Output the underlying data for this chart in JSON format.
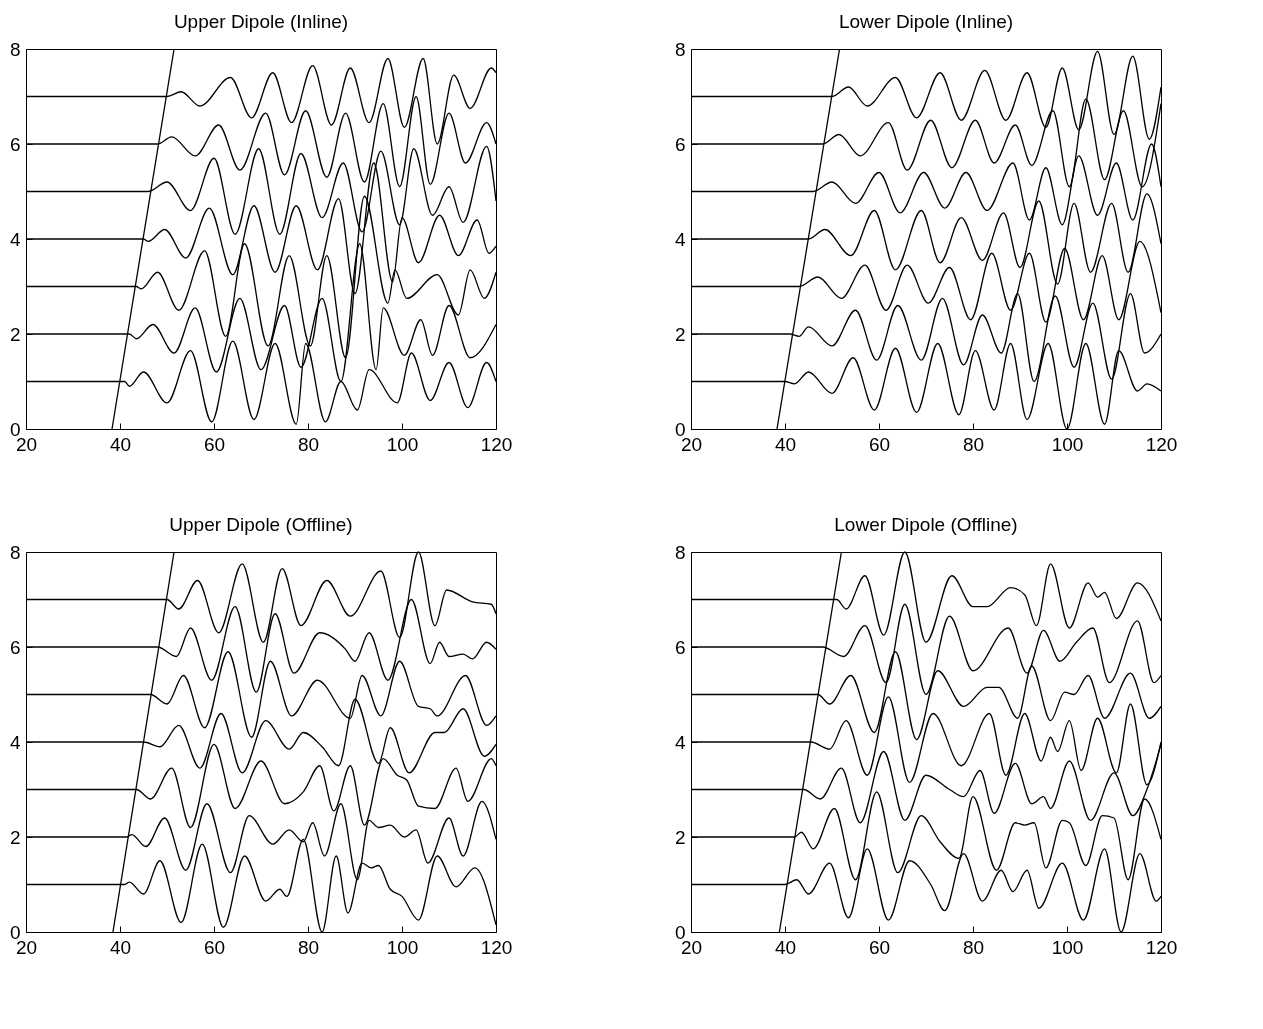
{
  "chart_data": [
    {
      "type": "line",
      "title": "Upper Dipole (Inline)",
      "xlim": [
        20,
        120
      ],
      "xticks": [
        20,
        40,
        60,
        80,
        100,
        120
      ],
      "ylim": [
        0,
        8
      ],
      "yticks": [
        0,
        2,
        4,
        6,
        8
      ],
      "grid": false,
      "series": [
        {
          "color": "#000000",
          "x": [
            20,
            41,
            42,
            45,
            50,
            55,
            59.5,
            64,
            68.5,
            73,
            77.5,
            79.5,
            83.7,
            87,
            90.5,
            93,
            99,
            102,
            106,
            110,
            114,
            118,
            120
          ],
          "values": [
            1,
            1,
            0.9,
            1.2,
            0.55,
            1.65,
            0.15,
            1.85,
            0.2,
            1.8,
            0.1,
            1.8,
            0.15,
            1,
            0.4,
            1.25,
            0.55,
            1.6,
            0.6,
            1.4,
            0.45,
            1.4,
            1
          ]
        },
        {
          "color": "#000000",
          "x": [
            20,
            42,
            43.5,
            47,
            51.5,
            56,
            60.5,
            65.5,
            70,
            75,
            78.5,
            83,
            87,
            91,
            94.5,
            96,
            100.5,
            104,
            106.5,
            110,
            114.5,
            120
          ],
          "values": [
            2,
            2,
            1.9,
            2.2,
            1.6,
            2.55,
            1.2,
            2.75,
            1.25,
            2.6,
            1.3,
            2.75,
            1,
            3.9,
            1.25,
            2.55,
            1.55,
            2.3,
            1.55,
            2.6,
            1.5,
            2.2
          ]
        },
        {
          "color": "#000000",
          "x": [
            20,
            43.5,
            44.5,
            48,
            52.5,
            58,
            62.5,
            66.5,
            71.5,
            76,
            80.5,
            84,
            88,
            92,
            97,
            98.5,
            101,
            107.5,
            112,
            114.5,
            117.5,
            120
          ],
          "values": [
            3,
            3,
            2.95,
            3.3,
            2.5,
            3.75,
            1.95,
            3.9,
            1.75,
            3.65,
            1.75,
            3.65,
            1.5,
            4.9,
            2.65,
            3.35,
            2.75,
            3.25,
            2.4,
            3.35,
            2.75,
            3.3
          ]
        },
        {
          "color": "#000000",
          "x": [
            20,
            45,
            46,
            49.5,
            54,
            59,
            64,
            68.5,
            73,
            77.5,
            82,
            86.5,
            90,
            94,
            98,
            100,
            103.5,
            108,
            112,
            116,
            118.5,
            120
          ],
          "values": [
            4,
            4,
            3.95,
            4.2,
            3.6,
            4.65,
            3.25,
            4.7,
            3.3,
            4.7,
            3.35,
            4.85,
            2.85,
            5.6,
            3.1,
            4.45,
            3.5,
            4.5,
            3.65,
            4.4,
            3.7,
            3.85
          ]
        },
        {
          "color": "#000000",
          "x": [
            20,
            46,
            50,
            55,
            60,
            64.5,
            69.5,
            74,
            78.5,
            83,
            87.5,
            91.5,
            95.5,
            99.5,
            102.5,
            106.5,
            110,
            113,
            118,
            120
          ],
          "values": [
            5,
            5,
            5.2,
            4.6,
            5.7,
            4.1,
            5.9,
            4.1,
            5.8,
            4.45,
            5.6,
            4.15,
            5.85,
            4.3,
            5.9,
            4.5,
            5.1,
            4.35,
            5.95,
            4.8
          ]
        },
        {
          "color": "#000000",
          "x": [
            20,
            48,
            51,
            56,
            61,
            65.5,
            71,
            75,
            79.5,
            84,
            88,
            92,
            96,
            99.5,
            103,
            106,
            110,
            113.5,
            118,
            120
          ],
          "values": [
            6,
            6,
            6.15,
            5.75,
            6.4,
            5.45,
            6.65,
            5.35,
            6.7,
            5.3,
            6.65,
            5.2,
            6.85,
            5.1,
            7,
            5.15,
            6.65,
            5.6,
            6.45,
            6
          ]
        },
        {
          "color": "#000000",
          "x": [
            20,
            50,
            53,
            57,
            63.5,
            68,
            72.5,
            76.5,
            81,
            85,
            89,
            93,
            97,
            100.5,
            104.5,
            107.5,
            111,
            114.5,
            119,
            120
          ],
          "values": [
            7,
            7,
            7.1,
            6.8,
            7.4,
            6.55,
            7.5,
            6.45,
            7.65,
            6.4,
            7.6,
            6.45,
            7.8,
            6.35,
            7.8,
            6,
            7.45,
            6.75,
            7.6,
            7.5
          ]
        },
        {
          "color": "#000000",
          "x": [
            38.3,
            51.5
          ],
          "values": [
            0,
            8
          ]
        }
      ]
    },
    {
      "type": "line",
      "title": "Lower Dipole (Inline)",
      "xlim": [
        20,
        120
      ],
      "xticks": [
        20,
        40,
        60,
        80,
        100,
        120
      ],
      "ylim": [
        0,
        8
      ],
      "yticks": [
        0,
        2,
        4,
        6,
        8
      ],
      "grid": false,
      "series": [
        {
          "color": "#000000",
          "x": [
            20,
            40,
            42,
            45,
            50,
            54.5,
            59,
            63.5,
            68,
            72.5,
            77,
            80.5,
            84.5,
            88,
            91.5,
            96,
            100,
            104,
            108,
            111,
            115,
            117,
            120
          ],
          "values": [
            1,
            1,
            0.95,
            1.2,
            0.75,
            1.5,
            0.4,
            1.7,
            0.35,
            1.8,
            0.3,
            1.65,
            0.4,
            1.8,
            0.2,
            1.8,
            0,
            1.8,
            0.1,
            1.65,
            0.8,
            0.95,
            0.8
          ]
        },
        {
          "color": "#000000",
          "x": [
            20,
            41,
            43,
            45,
            50,
            55,
            59.5,
            64,
            69,
            73.5,
            78,
            82,
            86,
            89.5,
            93,
            97.5,
            101.5,
            105.5,
            109.5,
            113.5,
            116.5,
            120
          ],
          "values": [
            2,
            2,
            1.95,
            2.15,
            1.75,
            2.5,
            1.45,
            2.6,
            1.45,
            2.75,
            1.35,
            2.4,
            1.6,
            2.85,
            1,
            2.8,
            1.3,
            2.65,
            1.05,
            2.85,
            1.6,
            2
          ]
        },
        {
          "color": "#000000",
          "x": [
            20,
            43,
            47,
            52,
            57,
            61.5,
            66,
            70.5,
            75,
            79.5,
            84,
            88,
            92,
            95.5,
            99.5,
            103.5,
            107.5,
            111,
            115.5,
            120
          ],
          "values": [
            3,
            3,
            3.2,
            2.75,
            3.45,
            2.5,
            3.45,
            2.65,
            3.4,
            2.3,
            3.7,
            2.5,
            3.7,
            2.25,
            3.8,
            2.3,
            3.65,
            2.3,
            3.95,
            2.45
          ]
        },
        {
          "color": "#000000",
          "x": [
            20,
            45,
            48.5,
            54,
            59,
            63.5,
            69,
            73,
            77.5,
            82,
            86.5,
            90,
            94,
            98,
            101.5,
            105,
            109.5,
            113,
            117,
            120
          ],
          "values": [
            4,
            4,
            4.2,
            3.65,
            4.6,
            3.35,
            4.6,
            3.5,
            4.45,
            3.55,
            4.55,
            3.4,
            4.8,
            3.05,
            4.75,
            3.3,
            4.75,
            3.3,
            4.95,
            3.9
          ]
        },
        {
          "color": "#000000",
          "x": [
            20,
            46,
            50,
            55,
            60,
            64.5,
            69.5,
            74,
            78.5,
            83,
            88.5,
            92,
            95.5,
            99,
            102.5,
            106.5,
            110.5,
            114,
            118,
            120
          ],
          "values": [
            5,
            5,
            5.2,
            4.75,
            5.4,
            4.55,
            5.4,
            4.65,
            5.4,
            4.6,
            5.6,
            4.4,
            5.5,
            4.3,
            5.75,
            4.5,
            5.6,
            4.4,
            6,
            5.1
          ]
        },
        {
          "color": "#000000",
          "x": [
            20,
            48,
            51.5,
            56,
            62,
            66,
            71,
            75.5,
            80.5,
            84.5,
            89,
            92.5,
            97,
            100.5,
            104,
            108,
            112,
            116,
            120
          ],
          "values": [
            6,
            6,
            6.2,
            5.75,
            6.45,
            5.45,
            6.5,
            5.5,
            6.5,
            5.6,
            6.4,
            5.55,
            6.7,
            5.1,
            6.95,
            5.25,
            6.7,
            5.1,
            6.85
          ]
        },
        {
          "color": "#000000",
          "x": [
            20,
            50,
            53.5,
            57.5,
            63.5,
            68,
            73,
            77.5,
            82.5,
            87,
            91.5,
            95.5,
            99,
            102.5,
            106.5,
            110,
            114,
            117.5,
            120
          ],
          "values": [
            7,
            7,
            7.2,
            6.8,
            7.4,
            6.55,
            7.5,
            6.5,
            7.55,
            6.5,
            7.5,
            6.35,
            7.6,
            6.3,
            7.95,
            6.2,
            7.85,
            6.1,
            7.2
          ]
        },
        {
          "color": "#000000",
          "x": [
            38.3,
            51.6
          ],
          "values": [
            0,
            8
          ]
        }
      ]
    },
    {
      "type": "line",
      "title": "Upper Dipole (Offline)",
      "xlim": [
        20,
        120
      ],
      "xticks": [
        20,
        40,
        60,
        80,
        100,
        120
      ],
      "ylim": [
        0,
        8
      ],
      "yticks": [
        0,
        2,
        4,
        6,
        8
      ],
      "grid": false,
      "series": [
        {
          "color": "#000000",
          "x": [
            20,
            41,
            42,
            45,
            48.5,
            53,
            57.5,
            62,
            66.5,
            71,
            74,
            75.5,
            79,
            83,
            86,
            88.5,
            91.5,
            93.5,
            95,
            97.5,
            100,
            103.5,
            107.5,
            111.5,
            115.5,
            120
          ],
          "values": [
            1,
            1,
            1.05,
            0.8,
            1.5,
            0.2,
            1.85,
            0.1,
            1.6,
            0.65,
            0.9,
            0.75,
            1.95,
            0,
            1.6,
            0.4,
            1.45,
            1.35,
            1.4,
            0.9,
            0.75,
            0.25,
            1.6,
            0.95,
            1.35,
            0.15
          ]
        },
        {
          "color": "#000000",
          "x": [
            20,
            41.5,
            42.5,
            45.5,
            49.5,
            54,
            58.5,
            63.5,
            67.5,
            72.5,
            76,
            79,
            81,
            83.5,
            87,
            90.5,
            93,
            95,
            97.5,
            100.5,
            103,
            105.5,
            110,
            113,
            117,
            120
          ],
          "values": [
            2,
            2,
            2.05,
            1.8,
            2.4,
            1.3,
            2.7,
            1.25,
            2.45,
            1.85,
            2.15,
            1.9,
            2.3,
            1.6,
            2.7,
            1.1,
            2.35,
            2.2,
            2.25,
            2,
            2.15,
            1.45,
            2.4,
            1.6,
            2.75,
            1.95
          ]
        },
        {
          "color": "#000000",
          "x": [
            20,
            43.5,
            46.5,
            51,
            55,
            60,
            64.5,
            70,
            75,
            79,
            82.5,
            85.5,
            89,
            92,
            96,
            99,
            101,
            103.5,
            107,
            111.5,
            114,
            119,
            120
          ],
          "values": [
            3,
            3,
            2.8,
            3.45,
            2.2,
            3.95,
            2.6,
            3.6,
            2.7,
            2.95,
            3.5,
            2.55,
            3.5,
            2.25,
            3.65,
            3.3,
            3.2,
            2.65,
            2.6,
            3.45,
            2.75,
            3.65,
            3.5
          ]
        },
        {
          "color": "#000000",
          "x": [
            20,
            45,
            48.5,
            52.5,
            57,
            61.5,
            66,
            71,
            76,
            79,
            83,
            86.5,
            90,
            95,
            97.5,
            101.5,
            107,
            109,
            113,
            117.5,
            120
          ],
          "values": [
            4,
            4,
            3.9,
            4.35,
            3.45,
            4.6,
            3.35,
            4.45,
            3.85,
            4.2,
            3.9,
            3.5,
            4.9,
            3.55,
            4.3,
            3.35,
            4.2,
            4.2,
            4.7,
            3.7,
            3.95
          ]
        },
        {
          "color": "#000000",
          "x": [
            20,
            46.5,
            50,
            53.5,
            58,
            63,
            68,
            72,
            76.5,
            82,
            89,
            91.5,
            95.5,
            99.5,
            103.5,
            106,
            107.5,
            113.5,
            118,
            120
          ],
          "values": [
            5,
            5,
            4.8,
            5.4,
            4.3,
            5.9,
            4.1,
            5.7,
            4.55,
            5.3,
            4.5,
            5.4,
            4.55,
            5.7,
            4.75,
            4.7,
            4.55,
            5.4,
            4.35,
            4.55
          ]
        },
        {
          "color": "#000000",
          "x": [
            20,
            48,
            52,
            55,
            59.5,
            64.5,
            69,
            73,
            77,
            82.5,
            88,
            90,
            93,
            97,
            102,
            106,
            108,
            110,
            113,
            115,
            118,
            120
          ],
          "values": [
            6,
            6,
            5.8,
            6.4,
            5.3,
            6.85,
            5.05,
            6.7,
            5.45,
            6.3,
            5.95,
            5.7,
            6.3,
            5.3,
            7,
            5.65,
            6.1,
            5.8,
            5.85,
            5.75,
            6.1,
            5.95
          ]
        },
        {
          "color": "#000000",
          "x": [
            20,
            50,
            52.5,
            56.5,
            61,
            66,
            70.5,
            74.5,
            78.5,
            84,
            89,
            95.5,
            99.5,
            103.5,
            107,
            109.5,
            115,
            119,
            120
          ],
          "values": [
            7,
            7,
            6.8,
            7.4,
            6.3,
            7.75,
            6.1,
            7.65,
            6.45,
            7.4,
            6.65,
            7.6,
            6.2,
            8,
            6.45,
            7.2,
            6.95,
            6.9,
            6.7
          ]
        },
        {
          "color": "#000000",
          "x": [
            38.5,
            51.5
          ],
          "values": [
            0,
            8
          ]
        }
      ]
    },
    {
      "type": "line",
      "title": "Lower Dipole (Offline)",
      "xlim": [
        20,
        120
      ],
      "xticks": [
        20,
        40,
        60,
        80,
        100,
        120
      ],
      "ylim": [
        0,
        8
      ],
      "yticks": [
        0,
        2,
        4,
        6,
        8
      ],
      "grid": false,
      "series": [
        {
          "color": "#000000",
          "x": [
            20,
            40,
            42.5,
            45,
            49.5,
            53.5,
            57.5,
            62,
            66.5,
            71,
            74,
            78,
            82,
            86,
            88.5,
            91.5,
            94,
            99,
            103.5,
            108,
            111.5,
            115.5,
            119,
            120
          ],
          "values": [
            1,
            1,
            1.1,
            0.8,
            1.45,
            0.3,
            1.75,
            0.25,
            1.5,
            1,
            0.45,
            1.65,
            0.65,
            1.3,
            0.85,
            1.3,
            0.5,
            1.45,
            0.25,
            1.75,
            0,
            1.65,
            0.65,
            0.75
          ]
        },
        {
          "color": "#000000",
          "x": [
            20,
            42,
            43.5,
            46,
            50.5,
            55,
            59.5,
            64,
            69,
            73,
            77,
            80,
            85,
            89,
            91,
            93,
            95.5,
            99,
            100.5,
            104,
            107.5,
            110,
            113,
            116.5,
            120
          ],
          "values": [
            2,
            2,
            2.1,
            1.75,
            2.6,
            1.1,
            2.95,
            1.25,
            2.45,
            1.9,
            1.55,
            2.85,
            1.3,
            2.3,
            2.25,
            2.3,
            1.35,
            2.35,
            2.3,
            1.4,
            2.45,
            2.4,
            1.1,
            2.8,
            1.95
          ]
        },
        {
          "color": "#000000",
          "x": [
            20,
            44,
            47.5,
            52,
            56,
            61,
            65.5,
            70,
            75,
            78,
            81.5,
            84.5,
            89,
            92.5,
            95,
            96.5,
            100.5,
            105,
            110,
            114,
            117,
            120
          ],
          "values": [
            3,
            3,
            2.8,
            3.45,
            2.3,
            3.8,
            2.35,
            3.3,
            3,
            2.85,
            3.4,
            2.5,
            3.55,
            2.7,
            2.85,
            2.6,
            3.6,
            2.35,
            3.35,
            2.45,
            3,
            3.95
          ]
        },
        {
          "color": "#000000",
          "x": [
            20,
            45.5,
            49.5,
            53,
            57.5,
            62,
            66.5,
            71.5,
            77.5,
            83.5,
            87,
            91,
            94.5,
            96.5,
            98,
            100.5,
            103,
            106.5,
            110.5,
            113.5,
            117,
            120
          ],
          "values": [
            4,
            4,
            3.85,
            4.45,
            3.3,
            4.95,
            3.15,
            4.6,
            3.5,
            4.6,
            3.3,
            4.6,
            3.6,
            4.1,
            3.8,
            4.45,
            3.4,
            4.5,
            3.35,
            4.8,
            3.1,
            4
          ]
        },
        {
          "color": "#000000",
          "x": [
            20,
            47,
            49.5,
            54,
            59,
            63.5,
            68,
            72.5,
            78,
            83,
            85.5,
            89.5,
            92.5,
            96.5,
            99.5,
            101.5,
            104.5,
            108,
            113.5,
            117.5,
            120
          ],
          "values": [
            5,
            5,
            4.8,
            5.4,
            4.2,
            5.9,
            4.05,
            5.5,
            4.75,
            5.15,
            5.15,
            4.5,
            5.6,
            4.45,
            5.05,
            5,
            5.4,
            4.5,
            5.45,
            4.5,
            4.75
          ]
        },
        {
          "color": "#000000",
          "x": [
            20,
            48,
            52.5,
            57,
            61.5,
            65.5,
            70,
            75,
            80,
            87.5,
            91.5,
            95,
            98.5,
            102,
            105.5,
            109,
            115,
            118.5,
            120
          ],
          "values": [
            6,
            6,
            5.8,
            6.45,
            5.25,
            6.9,
            5,
            6.65,
            5.5,
            6.4,
            5.45,
            6.35,
            5.7,
            6.1,
            6.4,
            5.25,
            6.55,
            5.25,
            5.4
          ]
        },
        {
          "color": "#000000",
          "x": [
            20,
            51,
            53,
            57,
            61,
            65.5,
            70,
            75.5,
            80,
            83,
            88,
            91,
            93.5,
            96.5,
            100.5,
            104.5,
            106.5,
            108,
            110.5,
            115,
            120
          ],
          "values": [
            7,
            7,
            6.8,
            7.5,
            6.25,
            8,
            6.1,
            7.5,
            6.85,
            6.85,
            7.25,
            7.1,
            6.45,
            7.75,
            6.4,
            7.35,
            7.05,
            7.15,
            6.6,
            7.35,
            6.55
          ]
        },
        {
          "color": "#000000",
          "x": [
            38.8,
            52
          ],
          "values": [
            0,
            8
          ]
        }
      ]
    }
  ]
}
